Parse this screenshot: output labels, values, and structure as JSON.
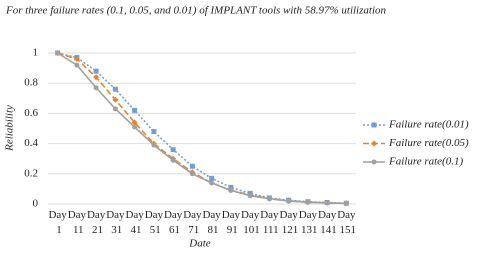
{
  "chart_data": {
    "type": "line",
    "title": "For three failure rates (0.1, 0.05, and 0.01) of IMPLANT tools with 58.97% utilization",
    "x_label": "Date",
    "y_label": "Reliability",
    "categories": [
      "Day 1",
      "Day 11",
      "Day 21",
      "Day 31",
      "Day 41",
      "Day 51",
      "Day 61",
      "Day 71",
      "Day 81",
      "Day 91",
      "Day 101",
      "Day 111",
      "Day 121",
      "Day 131",
      "Day 141",
      "Day 151"
    ],
    "ylim": [
      0,
      1
    ],
    "yticks": [
      0,
      0.2,
      0.4,
      0.6,
      0.8,
      1
    ],
    "grid": true,
    "legend": "right",
    "series": [
      {
        "name": "Failure rate(0.01)",
        "color": "#6f9fd8",
        "dash": "2,2",
        "marker": "square",
        "values": [
          1,
          0.97,
          0.88,
          0.76,
          0.62,
          0.48,
          0.36,
          0.25,
          0.17,
          0.11,
          0.07,
          0.04,
          0.025,
          0.015,
          0.01,
          0.005
        ]
      },
      {
        "name": "Failure rate(0.05)",
        "color": "#e8822e",
        "dash": "6,3",
        "marker": "diamond",
        "values": [
          1,
          0.96,
          0.84,
          0.69,
          0.54,
          0.4,
          0.3,
          0.21,
          0.14,
          0.09,
          0.06,
          0.035,
          0.02,
          0.012,
          0.008,
          0.004
        ]
      },
      {
        "name": "Failure rate(0.1)",
        "color": "#a0a0a0",
        "dash": "",
        "marker": "circle",
        "values": [
          1,
          0.92,
          0.77,
          0.63,
          0.51,
          0.39,
          0.29,
          0.2,
          0.14,
          0.09,
          0.055,
          0.035,
          0.02,
          0.012,
          0.007,
          0.004
        ]
      }
    ]
  }
}
